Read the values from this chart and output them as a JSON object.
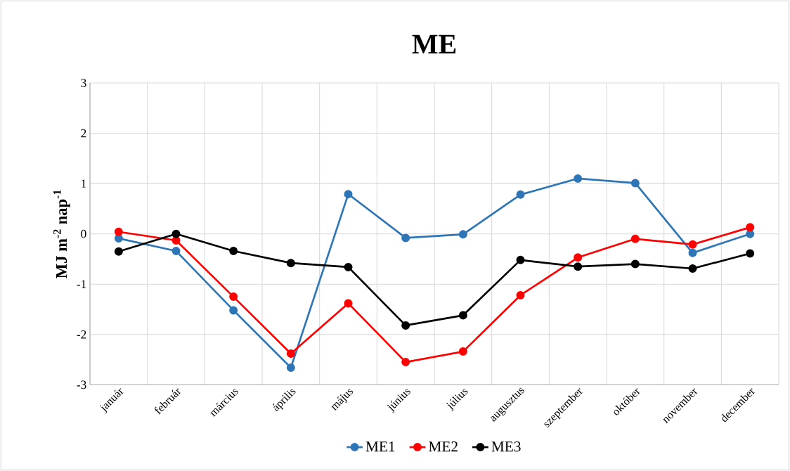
{
  "chart_data": {
    "type": "line",
    "title": "ME",
    "ylabel": "MJ m$^{-2}$ nap$^{-1}$",
    "categories": [
      "január",
      "február",
      "március",
      "április",
      "május",
      "június",
      "július",
      "augusztus",
      "szeptember",
      "október",
      "november",
      "december"
    ],
    "series": [
      {
        "name": "ME1",
        "color": "#2e75b6",
        "values": [
          -0.09,
          -0.34,
          -1.52,
          -2.66,
          0.79,
          -0.08,
          -0.01,
          0.78,
          1.1,
          1.01,
          -0.38,
          0.0
        ]
      },
      {
        "name": "ME2",
        "color": "#ff0000",
        "values": [
          0.04,
          -0.13,
          -1.25,
          -2.38,
          -1.38,
          -2.55,
          -2.34,
          -1.22,
          -0.47,
          -0.1,
          -0.21,
          0.13
        ]
      },
      {
        "name": "ME3",
        "color": "#000000",
        "values": [
          -0.35,
          0.0,
          -0.34,
          -0.58,
          -0.66,
          -1.82,
          -1.62,
          -0.52,
          -0.65,
          -0.6,
          -0.69,
          -0.39
        ]
      }
    ],
    "ylim": [
      -3,
      3
    ],
    "yticks": [
      -3,
      -2,
      -1,
      0,
      1,
      2,
      3
    ],
    "grid": true,
    "legend": "bottom",
    "marker": "circle",
    "line_style": "solid"
  }
}
